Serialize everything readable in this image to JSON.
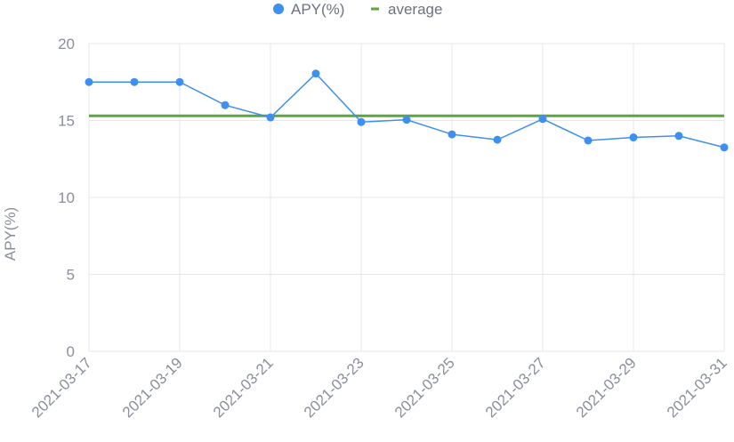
{
  "chart_data": {
    "type": "line",
    "title": "",
    "xlabel": "",
    "ylabel": "APY(%)",
    "ylim": [
      0,
      20
    ],
    "yticks": [
      0,
      5,
      10,
      15,
      20
    ],
    "grid": true,
    "legend_position": "top-center",
    "x": [
      "2021-03-17",
      "2021-03-18",
      "2021-03-19",
      "2021-03-20",
      "2021-03-21",
      "2021-03-22",
      "2021-03-23",
      "2021-03-24",
      "2021-03-25",
      "2021-03-26",
      "2021-03-27",
      "2021-03-28",
      "2021-03-29",
      "2021-03-30",
      "2021-03-31"
    ],
    "xtick_labels": [
      "2021-03-17",
      "2021-03-19",
      "2021-03-21",
      "2021-03-23",
      "2021-03-25",
      "2021-03-27",
      "2021-03-29",
      "2021-03-31"
    ],
    "series": [
      {
        "name": "APY(%)",
        "type": "line",
        "color": "#3d8ff0",
        "values": [
          17.5,
          17.5,
          17.5,
          16.0,
          15.2,
          18.05,
          14.9,
          15.05,
          14.1,
          13.75,
          15.1,
          13.7,
          13.9,
          14.0,
          13.25
        ]
      },
      {
        "name": "average",
        "type": "line",
        "color": "#5aa63f",
        "value": 15.3
      }
    ]
  }
}
